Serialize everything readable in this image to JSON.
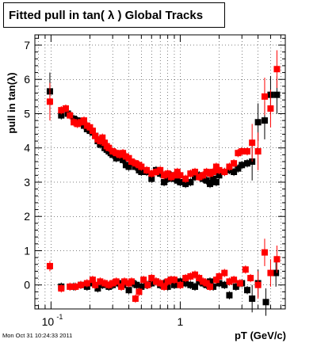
{
  "title": "Fitted pull in tan( λ )  Global Tracks",
  "timestamp": "Mon Oct 31 10:24:33 2011",
  "chart_data": {
    "type": "scatter",
    "title": "Fitted pull in tan( λ )  Global Tracks",
    "xlabel": "pT (GeV/c)",
    "ylabel": "pull in tan(λ)",
    "x_scale": "log",
    "xlim": [
      0.075,
      6.5
    ],
    "ylim": [
      -0.7,
      7.3
    ],
    "grid": true,
    "x_tick_labels": [
      {
        "value": 0.1,
        "base": "10",
        "exp": "-1"
      },
      {
        "value": 1,
        "base": "1",
        "exp": ""
      }
    ],
    "y_ticks": [
      0,
      1,
      2,
      3,
      4,
      5,
      6,
      7
    ],
    "series": [
      {
        "color": "#000000",
        "marker": "square",
        "x": [
          0.098,
          0.12,
          0.135,
          0.15,
          0.16,
          0.17,
          0.18,
          0.19,
          0.2,
          0.21,
          0.22,
          0.23,
          0.24,
          0.25,
          0.26,
          0.27,
          0.28,
          0.29,
          0.3,
          0.32,
          0.34,
          0.36,
          0.38,
          0.4,
          0.42,
          0.45,
          0.48,
          0.5,
          0.55,
          0.6,
          0.65,
          0.7,
          0.75,
          0.8,
          0.85,
          0.9,
          0.95,
          1.0,
          1.1,
          1.2,
          1.3,
          1.4,
          1.5,
          1.6,
          1.7,
          1.8,
          1.9,
          2.0,
          2.2,
          2.4,
          2.6,
          2.8,
          3.0,
          3.3,
          3.6,
          4.0,
          4.5,
          5.0,
          5.6
        ],
        "y": [
          5.65,
          4.95,
          5.0,
          4.85,
          4.8,
          4.75,
          4.65,
          4.55,
          4.5,
          4.45,
          4.35,
          4.2,
          4.1,
          4.15,
          4.0,
          3.95,
          3.9,
          3.85,
          3.8,
          3.7,
          3.75,
          3.65,
          3.5,
          3.45,
          3.55,
          3.45,
          3.35,
          3.3,
          3.3,
          3.1,
          3.35,
          3.25,
          3.0,
          3.1,
          3.2,
          3.1,
          3.05,
          3.0,
          2.95,
          3.0,
          3.15,
          3.2,
          3.1,
          3.05,
          2.95,
          3.1,
          3.0,
          3.2,
          3.3,
          3.35,
          3.3,
          3.4,
          3.5,
          3.55,
          3.6,
          4.75,
          4.8,
          5.55,
          5.55
        ],
        "x2": [
          0.12,
          0.15,
          0.17,
          0.19,
          0.21,
          0.23,
          0.25,
          0.28,
          0.3,
          0.33,
          0.36,
          0.4,
          0.43,
          0.46,
          0.5,
          0.55,
          0.6,
          0.65,
          0.7,
          0.75,
          0.8,
          0.85,
          0.9,
          1.0,
          1.1,
          1.2,
          1.3,
          1.4,
          1.5,
          1.6,
          1.7,
          1.8,
          2.0,
          2.2,
          2.4,
          2.7,
          3.0,
          3.3,
          3.6,
          4.0,
          4.6,
          5.5
        ],
        "y2": [
          -0.05,
          -0.05,
          0.0,
          -0.05,
          0.05,
          -0.1,
          0.0,
          -0.05,
          0.0,
          0.05,
          0.0,
          -0.15,
          0.05,
          0.0,
          -0.05,
          0.0,
          0.05,
          0.1,
          0.0,
          0.05,
          -0.05,
          0.15,
          0.0,
          0.1,
          0.05,
          0.0,
          -0.05,
          0.1,
          0.05,
          0.0,
          0.1,
          -0.05,
          0.05,
          0.0,
          -0.3,
          -0.05,
          0.05,
          -0.15,
          -0.4,
          0.05,
          -0.5,
          0.35
        ]
      },
      {
        "color": "#ff0000",
        "marker": "square",
        "x": [
          0.098,
          0.12,
          0.13,
          0.14,
          0.15,
          0.16,
          0.17,
          0.18,
          0.19,
          0.2,
          0.21,
          0.22,
          0.23,
          0.24,
          0.25,
          0.26,
          0.27,
          0.28,
          0.3,
          0.32,
          0.34,
          0.36,
          0.38,
          0.4,
          0.42,
          0.45,
          0.48,
          0.5,
          0.55,
          0.6,
          0.65,
          0.7,
          0.75,
          0.8,
          0.85,
          0.9,
          0.95,
          1.0,
          1.1,
          1.2,
          1.3,
          1.4,
          1.5,
          1.6,
          1.7,
          1.8,
          1.9,
          2.0,
          2.2,
          2.4,
          2.6,
          2.8,
          3.0,
          3.3,
          3.6,
          4.0,
          4.5,
          5.0,
          5.6
        ],
        "y": [
          5.35,
          5.1,
          5.15,
          4.95,
          4.75,
          4.7,
          4.75,
          4.8,
          4.65,
          4.6,
          4.5,
          4.35,
          4.25,
          4.2,
          4.3,
          4.15,
          4.05,
          4.0,
          3.9,
          3.85,
          3.8,
          3.85,
          3.75,
          3.7,
          3.6,
          3.55,
          3.5,
          3.45,
          3.35,
          3.25,
          3.3,
          3.35,
          3.2,
          3.25,
          3.15,
          3.2,
          3.3,
          3.2,
          3.1,
          3.25,
          3.3,
          3.15,
          3.2,
          3.3,
          3.25,
          3.3,
          3.45,
          3.35,
          3.3,
          3.45,
          3.55,
          3.85,
          3.9,
          3.9,
          4.15,
          3.9,
          5.5,
          5.15,
          6.3
        ],
        "x2": [
          0.098,
          0.12,
          0.14,
          0.155,
          0.17,
          0.19,
          0.21,
          0.22,
          0.24,
          0.26,
          0.28,
          0.3,
          0.32,
          0.35,
          0.37,
          0.4,
          0.42,
          0.45,
          0.48,
          0.52,
          0.56,
          0.6,
          0.65,
          0.7,
          0.75,
          0.8,
          0.85,
          0.9,
          1.0,
          1.1,
          1.2,
          1.3,
          1.4,
          1.5,
          1.6,
          1.7,
          1.9,
          2.0,
          2.2,
          2.4,
          2.6,
          2.9,
          3.2,
          3.5,
          4.0,
          4.5,
          5.0,
          5.6
        ],
        "y2": [
          0.55,
          -0.1,
          -0.05,
          -0.05,
          0.0,
          0.05,
          0.15,
          0.0,
          0.1,
          0.05,
          0.0,
          0.05,
          0.1,
          -0.05,
          0.1,
          0.05,
          0.1,
          -0.4,
          -0.2,
          0.15,
          0.0,
          0.2,
          0.1,
          0.05,
          -0.05,
          0.1,
          0.15,
          0.15,
          0.0,
          0.2,
          0.25,
          0.3,
          0.2,
          0.1,
          0.05,
          -0.05,
          0.15,
          0.25,
          0.35,
          0.1,
          0.15,
          0.05,
          0.45,
          0.2,
          0.0,
          0.95,
          0.35,
          0.75
        ]
      }
    ]
  }
}
